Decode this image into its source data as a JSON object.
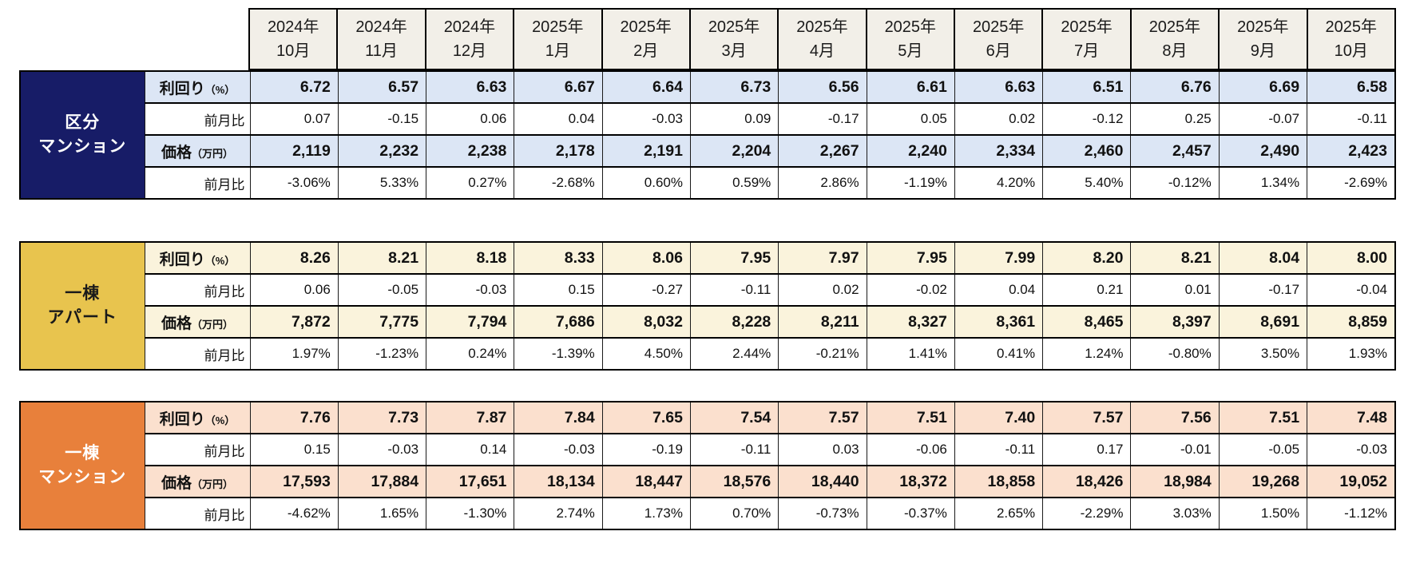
{
  "chart_data": {
    "type": "table",
    "months": [
      {
        "l1": "2024年",
        "l2": "10月"
      },
      {
        "l1": "2024年",
        "l2": "11月"
      },
      {
        "l1": "2024年",
        "l2": "12月"
      },
      {
        "l1": "2025年",
        "l2": "1月"
      },
      {
        "l1": "2025年",
        "l2": "2月"
      },
      {
        "l1": "2025年",
        "l2": "3月"
      },
      {
        "l1": "2025年",
        "l2": "4月"
      },
      {
        "l1": "2025年",
        "l2": "5月"
      },
      {
        "l1": "2025年",
        "l2": "6月"
      },
      {
        "l1": "2025年",
        "l2": "7月"
      },
      {
        "l1": "2025年",
        "l2": "8月"
      },
      {
        "l1": "2025年",
        "l2": "9月"
      },
      {
        "l1": "2025年",
        "l2": "10月"
      }
    ],
    "sections": [
      {
        "name": "区分マンション",
        "label_lines": [
          "区分",
          "マンション"
        ],
        "colors": {
          "header_bg": "#171C67",
          "header_text": "#FFFFFF",
          "shade": "#DCE6F5"
        },
        "rows": [
          {
            "label": "利回り",
            "unit": "（%）",
            "emphasis": true,
            "values": [
              "6.72",
              "6.57",
              "6.63",
              "6.67",
              "6.64",
              "6.73",
              "6.56",
              "6.61",
              "6.63",
              "6.51",
              "6.76",
              "6.69",
              "6.58"
            ]
          },
          {
            "label": "前月比",
            "emphasis": false,
            "values": [
              "0.07",
              "-0.15",
              "0.06",
              "0.04",
              "-0.03",
              "0.09",
              "-0.17",
              "0.05",
              "0.02",
              "-0.12",
              "0.25",
              "-0.07",
              "-0.11"
            ]
          },
          {
            "label": "価格",
            "unit": "（万円）",
            "emphasis": true,
            "values": [
              "2,119",
              "2,232",
              "2,238",
              "2,178",
              "2,191",
              "2,204",
              "2,267",
              "2,240",
              "2,334",
              "2,460",
              "2,457",
              "2,490",
              "2,423"
            ]
          },
          {
            "label": "前月比",
            "emphasis": false,
            "values": [
              "-3.06%",
              "5.33%",
              "0.27%",
              "-2.68%",
              "0.60%",
              "0.59%",
              "2.86%",
              "-1.19%",
              "4.20%",
              "5.40%",
              "-0.12%",
              "1.34%",
              "-2.69%"
            ]
          }
        ]
      },
      {
        "name": "一棟アパート",
        "label_lines": [
          "一棟",
          "アパート"
        ],
        "colors": {
          "header_bg": "#E8C44E",
          "header_text": "#1A1A1A",
          "shade": "#FAF3DC"
        },
        "rows": [
          {
            "label": "利回り",
            "unit": "（%）",
            "emphasis": true,
            "values": [
              "8.26",
              "8.21",
              "8.18",
              "8.33",
              "8.06",
              "7.95",
              "7.97",
              "7.95",
              "7.99",
              "8.20",
              "8.21",
              "8.04",
              "8.00"
            ]
          },
          {
            "label": "前月比",
            "emphasis": false,
            "values": [
              "0.06",
              "-0.05",
              "-0.03",
              "0.15",
              "-0.27",
              "-0.11",
              "0.02",
              "-0.02",
              "0.04",
              "0.21",
              "0.01",
              "-0.17",
              "-0.04"
            ]
          },
          {
            "label": "価格",
            "unit": "（万円）",
            "emphasis": true,
            "values": [
              "7,872",
              "7,775",
              "7,794",
              "7,686",
              "8,032",
              "8,228",
              "8,211",
              "8,327",
              "8,361",
              "8,465",
              "8,397",
              "8,691",
              "8,859"
            ]
          },
          {
            "label": "前月比",
            "emphasis": false,
            "values": [
              "1.97%",
              "-1.23%",
              "0.24%",
              "-1.39%",
              "4.50%",
              "2.44%",
              "-0.21%",
              "1.41%",
              "0.41%",
              "1.24%",
              "-0.80%",
              "3.50%",
              "1.93%"
            ]
          }
        ]
      },
      {
        "name": "一棟マンション",
        "label_lines": [
          "一棟",
          "マンション"
        ],
        "colors": {
          "header_bg": "#E8803B",
          "header_text": "#FFFFFF",
          "shade": "#FBE0CE"
        },
        "rows": [
          {
            "label": "利回り",
            "unit": "（%）",
            "emphasis": true,
            "values": [
              "7.76",
              "7.73",
              "7.87",
              "7.84",
              "7.65",
              "7.54",
              "7.57",
              "7.51",
              "7.40",
              "7.57",
              "7.56",
              "7.51",
              "7.48"
            ]
          },
          {
            "label": "前月比",
            "emphasis": false,
            "values": [
              "0.15",
              "-0.03",
              "0.14",
              "-0.03",
              "-0.19",
              "-0.11",
              "0.03",
              "-0.06",
              "-0.11",
              "0.17",
              "-0.01",
              "-0.05",
              "-0.03"
            ]
          },
          {
            "label": "価格",
            "unit": "（万円）",
            "emphasis": true,
            "values": [
              "17,593",
              "17,884",
              "17,651",
              "18,134",
              "18,447",
              "18,576",
              "18,440",
              "18,372",
              "18,858",
              "18,426",
              "18,984",
              "19,268",
              "19,052"
            ]
          },
          {
            "label": "前月比",
            "emphasis": false,
            "values": [
              "-4.62%",
              "1.65%",
              "-1.30%",
              "2.74%",
              "1.73%",
              "0.70%",
              "-0.73%",
              "-0.37%",
              "2.65%",
              "-2.29%",
              "3.03%",
              "1.50%",
              "-1.12%"
            ]
          }
        ]
      }
    ]
  }
}
